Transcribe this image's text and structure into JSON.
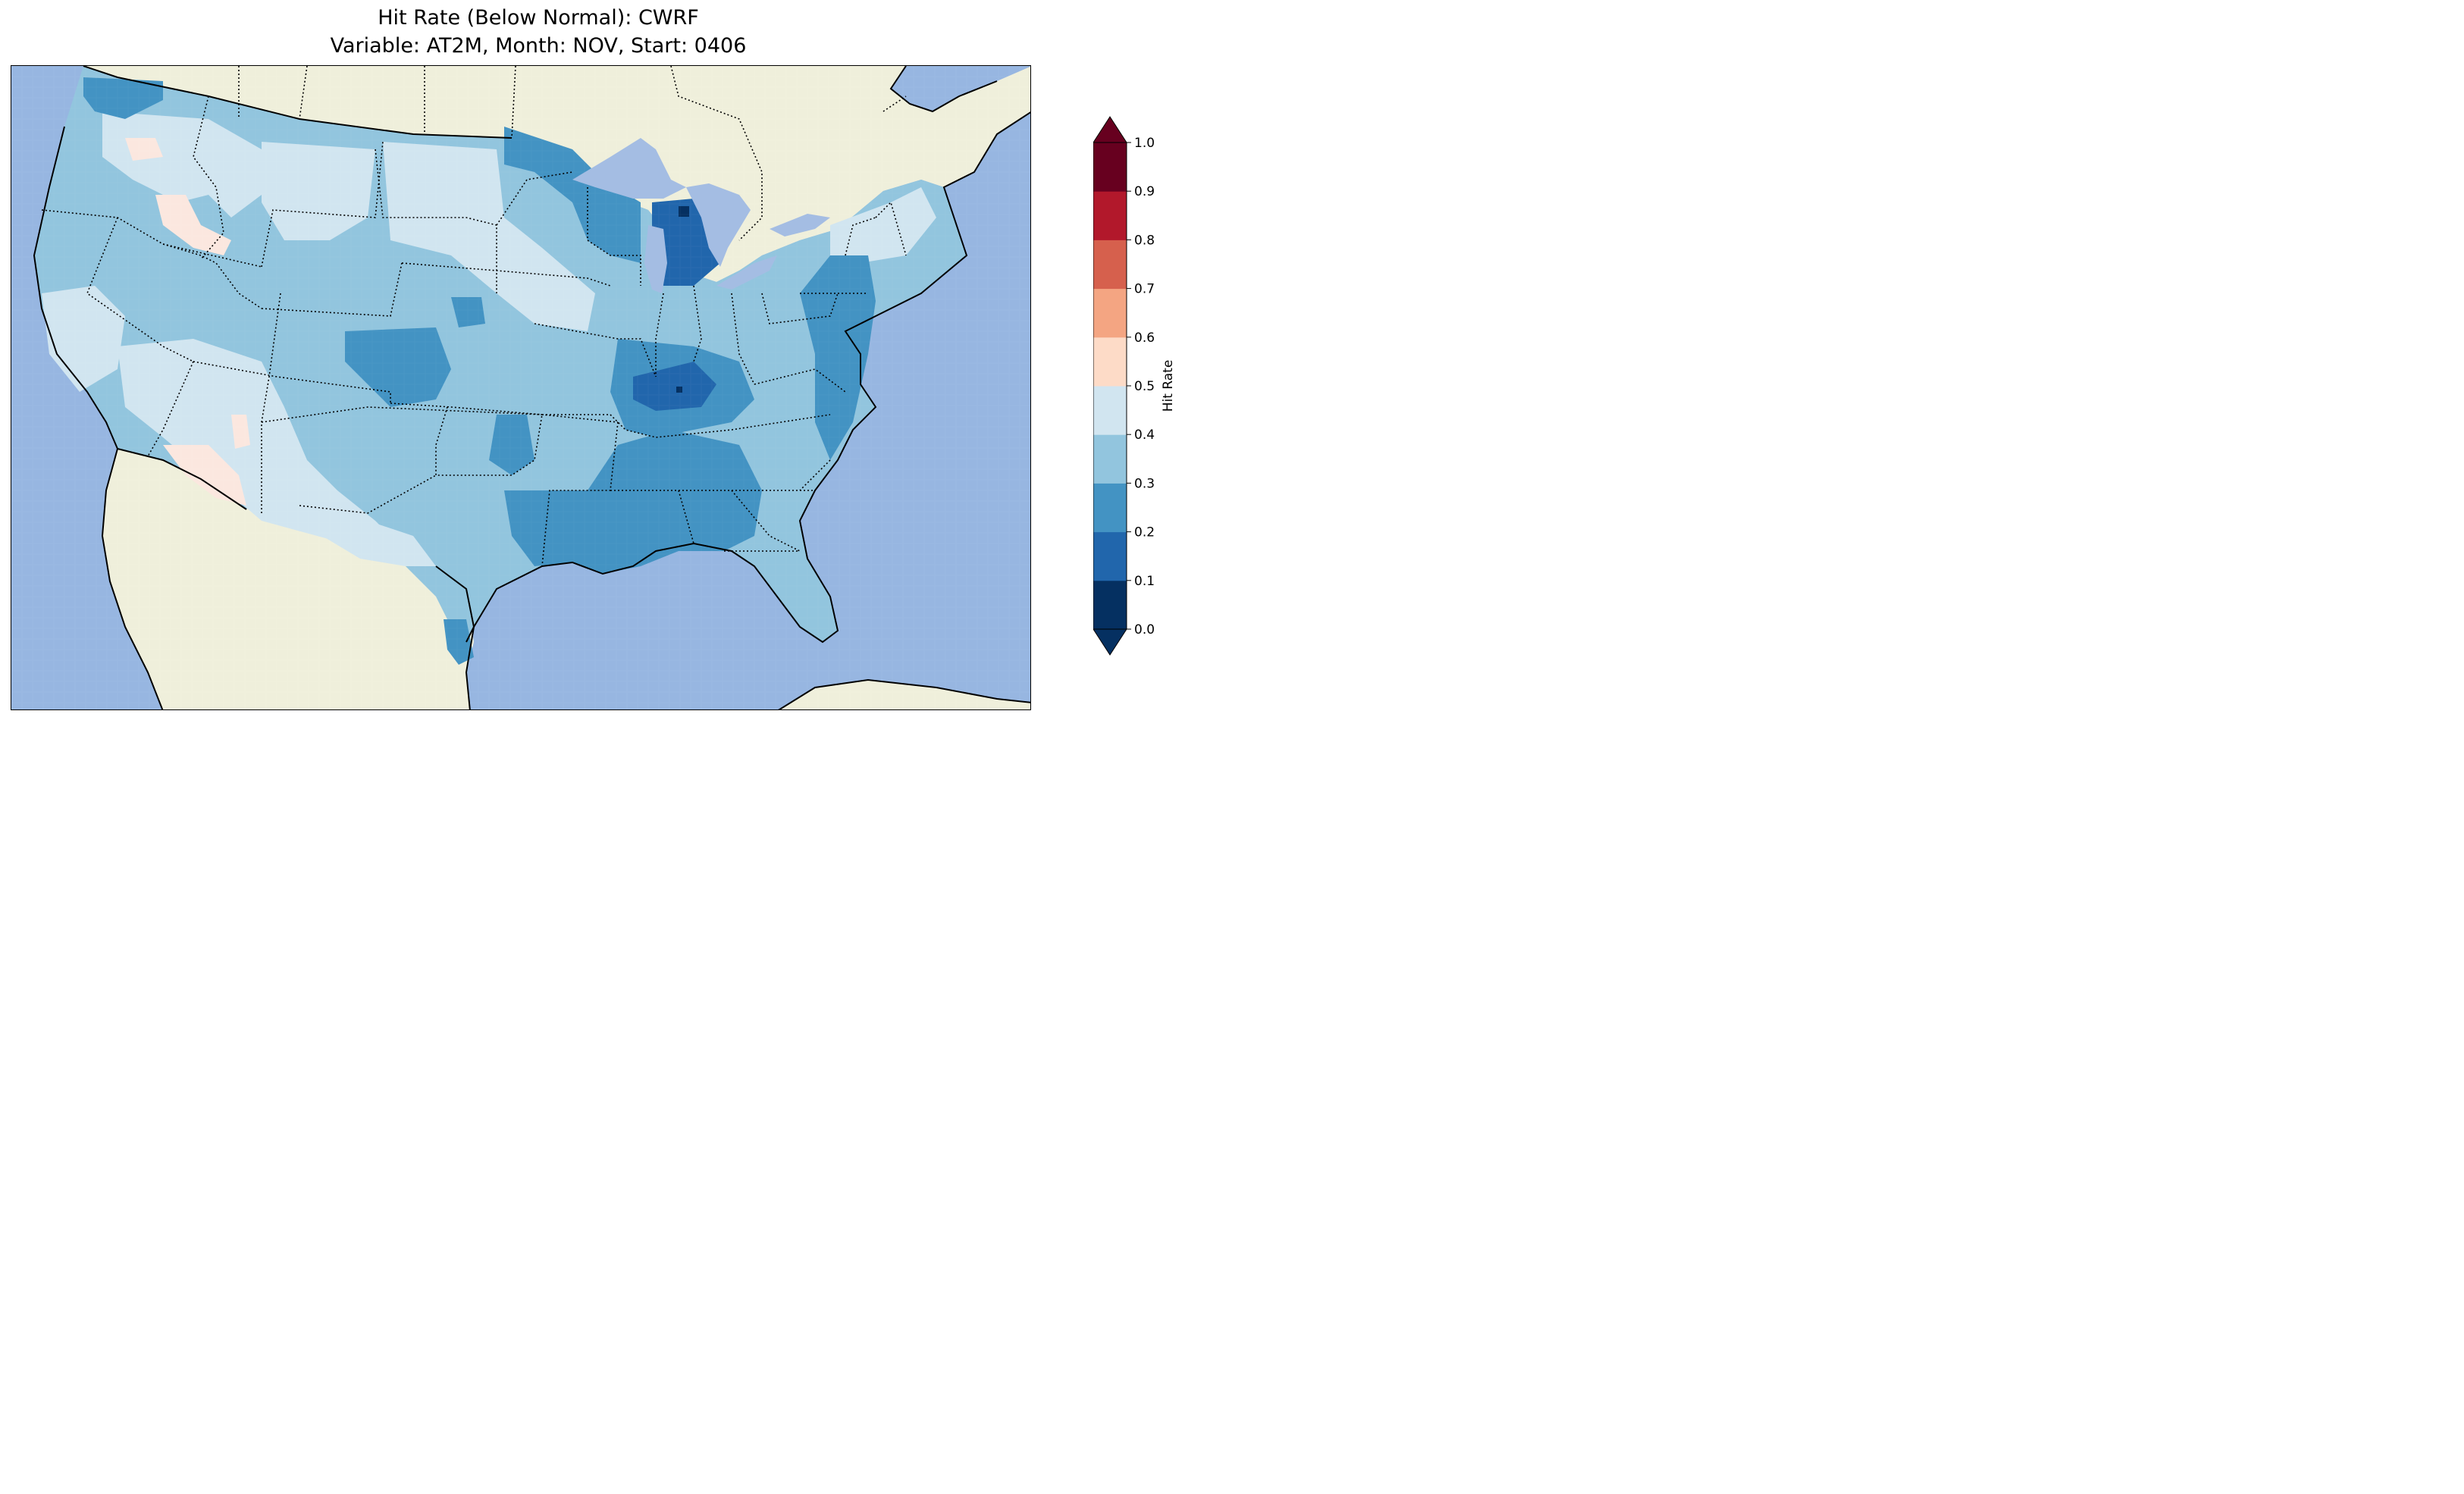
{
  "figure": {
    "title_line1": "Hit Rate (Below Normal): CWRF",
    "title_line2": "Variable: AT2M, Month: NOV, Start: 0406"
  },
  "map": {
    "projection": "lambert-conformal",
    "region": "contiguous-united-states",
    "ocean_color": "#97b6e1",
    "land_color": "#efefdb",
    "borders": [
      "coastlines",
      "state-boundaries",
      "country-boundaries"
    ],
    "field_regions": [
      {
        "region": "pacific-northwest-coast",
        "hit_rate": 0.25
      },
      {
        "region": "west",
        "hit_rate": 0.35
      },
      {
        "region": "idaho-southwest-oregon",
        "hit_rate": 0.45
      },
      {
        "region": "southern-california-arizona",
        "hit_rate": 0.45
      },
      {
        "region": "central-plains",
        "hit_rate": 0.35
      },
      {
        "region": "colorado-kansas",
        "hit_rate": 0.25
      },
      {
        "region": "north-dakota-minnesota-iowa",
        "hit_rate": 0.45
      },
      {
        "region": "wisconsin-michigan",
        "hit_rate": 0.25
      },
      {
        "region": "lower-michigan",
        "hit_rate": 0.15
      },
      {
        "region": "kentucky-tennessee",
        "hit_rate": 0.15
      },
      {
        "region": "gulf-coast-southeast",
        "hit_rate": 0.25
      },
      {
        "region": "northeast",
        "hit_rate": 0.35
      },
      {
        "region": "florida",
        "hit_rate": 0.35
      },
      {
        "region": "texas",
        "hit_rate": 0.35
      }
    ]
  },
  "colorbar": {
    "label": "Hit Rate",
    "min": 0.0,
    "max": 1.0,
    "extend": "both",
    "ticks": [
      "0.0",
      "0.1",
      "0.2",
      "0.3",
      "0.4",
      "0.5",
      "0.6",
      "0.7",
      "0.8",
      "0.9",
      "1.0"
    ],
    "colors": [
      "#053061",
      "#2166ac",
      "#4393c3",
      "#92c5de",
      "#d1e5f0",
      "#fddbc7",
      "#f4a582",
      "#d6604d",
      "#b2182b",
      "#67001f"
    ],
    "under_color": "#053061",
    "over_color": "#67001f"
  }
}
